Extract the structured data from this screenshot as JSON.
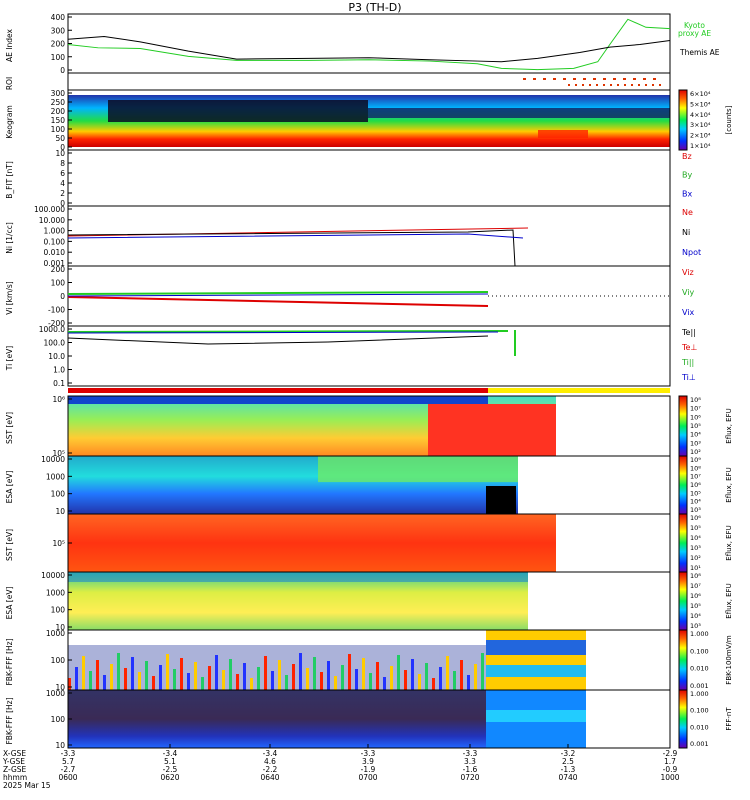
{
  "title": "P3 (TH-D)",
  "footer": {
    "row_labels": [
      "X-GSE",
      "Y-GSE",
      "Z-GSE",
      "hhmm",
      "2025 Mar 15"
    ],
    "ticks": [
      {
        "x": "-3.3",
        "y": "5.7",
        "z": "-2.7",
        "t": "0600"
      },
      {
        "x": "-3.4",
        "y": "5.1",
        "z": "-2.5",
        "t": "0620"
      },
      {
        "x": "-3.4",
        "y": "4.6",
        "z": "-2.2",
        "t": "0640"
      },
      {
        "x": "-3.3",
        "y": "3.9",
        "z": "-1.9",
        "t": "0700"
      },
      {
        "x": "-3.3",
        "y": "3.3",
        "z": "-1.6",
        "t": "0720"
      },
      {
        "x": "-3.2",
        "y": "2.5",
        "z": "-1.3",
        "t": "0740"
      },
      {
        "x": "-2.9",
        "y": "1.7",
        "z": "-0.9",
        "t": "1000"
      }
    ]
  },
  "chart_data": [
    {
      "id": "ae",
      "type": "line",
      "ylabel": "AE Index",
      "yticks": [
        "400",
        "300",
        "200",
        "100",
        "0"
      ],
      "series": [
        {
          "name": "Kyoto proxy AE",
          "color": "#22cc22",
          "x": [
            0,
            0.05,
            0.12,
            0.2,
            0.28,
            0.4,
            0.5,
            0.6,
            0.68,
            0.72,
            0.78,
            0.84,
            0.88,
            0.9,
            0.93,
            0.96,
            1
          ],
          "y": [
            200,
            175,
            170,
            110,
            80,
            80,
            85,
            75,
            55,
            20,
            10,
            20,
            70,
            200,
            390,
            330,
            320
          ]
        },
        {
          "name": "Themis AE",
          "color": "#000000",
          "x": [
            0,
            0.06,
            0.12,
            0.2,
            0.28,
            0.4,
            0.5,
            0.6,
            0.68,
            0.72,
            0.78,
            0.85,
            0.9,
            0.95,
            1
          ],
          "y": [
            240,
            260,
            220,
            150,
            90,
            95,
            100,
            85,
            75,
            70,
            95,
            140,
            180,
            200,
            230
          ]
        }
      ]
    },
    {
      "id": "roi",
      "type": "table",
      "ylabel": "ROI"
    },
    {
      "id": "keo",
      "type": "heatmap",
      "ylabel": "Keogram",
      "yticks": [
        "300",
        "250",
        "200",
        "150",
        "100",
        "50",
        "0"
      ],
      "colorbar": {
        "ticks": [
          "6×10⁴",
          "5×10⁴",
          "4×10⁴",
          "3×10⁴",
          "2×10⁴",
          "1×10⁴"
        ],
        "label": "[counts]"
      }
    },
    {
      "id": "bfit",
      "type": "line",
      "ylabel": "B_FIT [nT]",
      "yticks": [
        "10",
        "8",
        "6",
        "4",
        "2",
        "0"
      ],
      "legend": [
        {
          "name": "Bz",
          "color": "#dd0000"
        },
        {
          "name": "By",
          "color": "#22aa22"
        },
        {
          "name": "Bx",
          "color": "#0000cc"
        }
      ]
    },
    {
      "id": "ni",
      "type": "line",
      "ylabel": "Ni [1/cc]",
      "yticks": [
        "100.000",
        "10.000",
        "1.000",
        "0.100",
        "0.010",
        "0.001"
      ],
      "legend": [
        {
          "name": "Ne",
          "color": "#dd0000"
        },
        {
          "name": "Ni",
          "color": "#000000"
        },
        {
          "name": "Npot",
          "color": "#0000cc"
        }
      ]
    },
    {
      "id": "vi",
      "type": "line",
      "ylabel": "Vi [km/s]",
      "yticks": [
        "200",
        "100",
        "0",
        "-100",
        "-200"
      ],
      "legend": [
        {
          "name": "Viz",
          "color": "#dd0000"
        },
        {
          "name": "Viy",
          "color": "#22aa22"
        },
        {
          "name": "Vix",
          "color": "#0000cc"
        }
      ]
    },
    {
      "id": "ti",
      "type": "line",
      "ylabel": "Ti [eV]",
      "yticks": [
        "1000.0",
        "100.0",
        "10.0",
        "1.0",
        "0.1"
      ],
      "legend": [
        {
          "name": "Te||",
          "color": "#000000"
        },
        {
          "name": "Te⊥",
          "color": "#dd0000"
        },
        {
          "name": "Ti||",
          "color": "#22aa22"
        },
        {
          "name": "Ti⊥",
          "color": "#0000cc"
        }
      ]
    },
    {
      "id": "sste",
      "type": "heatmap",
      "ylabel": "SST [eV]",
      "yticks": [
        "10⁶",
        "10⁵"
      ],
      "colorbar": {
        "ticks": [
          "10⁸",
          "10⁷",
          "10⁶",
          "10⁵",
          "10⁴",
          "10³",
          "10²"
        ],
        "label": "Eflux, EFU"
      }
    },
    {
      "id": "esae",
      "type": "heatmap",
      "ylabel": "ESA [eV]",
      "yticks": [
        "10000",
        "1000",
        "100",
        "10"
      ],
      "colorbar": {
        "ticks": [
          "10⁹",
          "10⁸",
          "10⁷",
          "10⁶",
          "10⁵",
          "10⁴",
          "10³"
        ],
        "label": "Eflux, EFU"
      }
    },
    {
      "id": "ssti",
      "type": "heatmap",
      "ylabel": "SST [eV]",
      "yticks": [
        "10⁵"
      ],
      "colorbar": {
        "ticks": [
          "10⁶",
          "10⁵",
          "10⁴",
          "10³",
          "10²",
          "10¹"
        ],
        "label": "Eflux, EFU"
      }
    },
    {
      "id": "esai",
      "type": "heatmap",
      "ylabel": "ESA [eV]",
      "yticks": [
        "10000",
        "1000",
        "100",
        "10"
      ],
      "colorbar": {
        "ticks": [
          "10⁸",
          "10⁷",
          "10⁶",
          "10⁵",
          "10⁴",
          "10³"
        ],
        "label": "Eflux, EFU"
      }
    },
    {
      "id": "fffe",
      "type": "heatmap",
      "ylabel": "FBK-FFF [Hz]",
      "yticks": [
        "1000",
        "100",
        "10"
      ],
      "colorbar": {
        "ticks": [
          "1.000",
          "0.100",
          "0.010",
          "0.001"
        ],
        "label": "FBK-100mV/m"
      }
    },
    {
      "id": "fffb",
      "type": "heatmap",
      "ylabel": "FBK-FFF [Hz]",
      "yticks": [
        "1000",
        "100",
        "10"
      ],
      "colorbar": {
        "ticks": [
          "1.000",
          "0.100",
          "0.010",
          "0.001"
        ],
        "label": "FFF-nT"
      }
    }
  ]
}
